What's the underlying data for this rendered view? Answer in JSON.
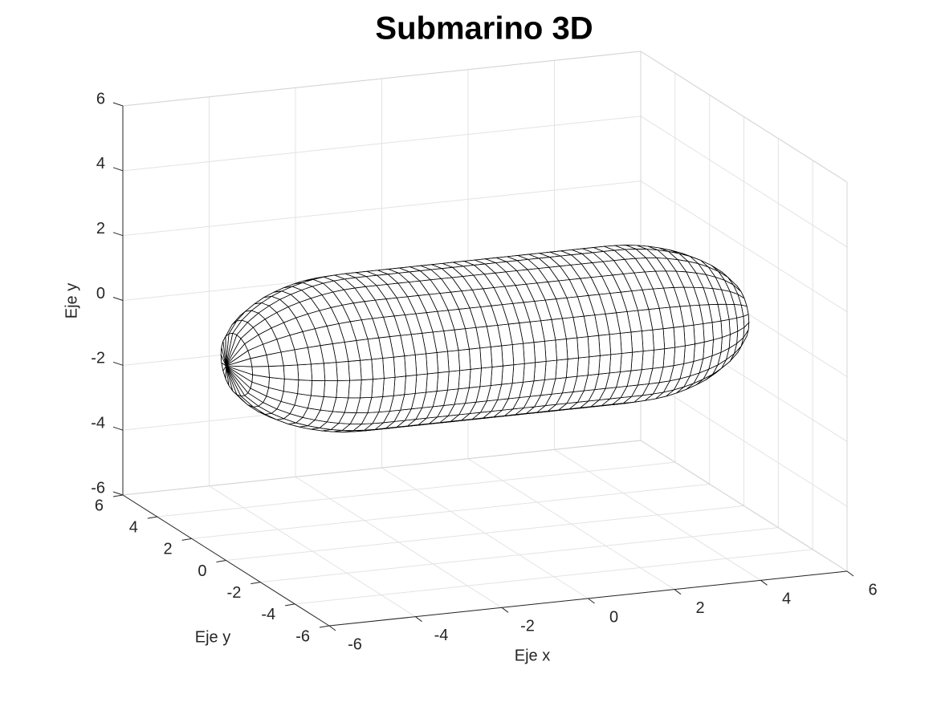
{
  "chart_data": {
    "type": "mesh3d",
    "title": "Submarino 3D",
    "x_label": "Eje x",
    "y_label": "Eje y",
    "z_label": "Eje y",
    "x": [
      -6,
      -5.75,
      -5.5,
      -5.25,
      -5,
      -4.75,
      -4.5,
      -4.25,
      -4,
      -3.75,
      -3.5,
      -3.25,
      -3,
      -2.75,
      -2.5,
      -2.25,
      -2,
      -1.75,
      -1.5,
      -1.25,
      -1,
      -0.75,
      -0.5,
      -0.25,
      0,
      0.25,
      0.5,
      0.75,
      1,
      1.25,
      1.5,
      1.75,
      2,
      2.25,
      2.5,
      2.75,
      3,
      3.25,
      3.5,
      3.75,
      4,
      4.25,
      4.5,
      4.75,
      5,
      5.25,
      5.5,
      5.75,
      6
    ],
    "values": [
      0,
      0.92,
      1.27,
      1.52,
      1.71,
      1.87,
      1.99,
      2.09,
      2.17,
      2.23,
      2.27,
      2.29,
      2.3,
      2.3,
      2.3,
      2.3,
      2.3,
      2.3,
      2.3,
      2.3,
      2.3,
      2.3,
      2.3,
      2.3,
      2.3,
      2.3,
      2.3,
      2.3,
      2.3,
      2.3,
      2.3,
      2.3,
      2.3,
      2.3,
      2.3,
      2.3,
      2.3,
      2.29,
      2.27,
      2.23,
      2.17,
      2.09,
      1.99,
      1.87,
      1.71,
      1.52,
      1.27,
      0.92,
      0
    ],
    "color": "#000000",
    "face_color": "#ffffff",
    "xlim": [
      -6,
      6
    ],
    "ylim": [
      -6,
      6
    ],
    "zlim": [
      -6,
      6
    ],
    "xticks": [
      -6,
      -4,
      -2,
      0,
      2,
      4,
      6
    ],
    "yticks": [
      -6,
      -4,
      -2,
      0,
      2,
      4,
      6
    ],
    "zticks": [
      -6,
      -4,
      -2,
      0,
      2,
      4,
      6
    ],
    "grid": true
  }
}
